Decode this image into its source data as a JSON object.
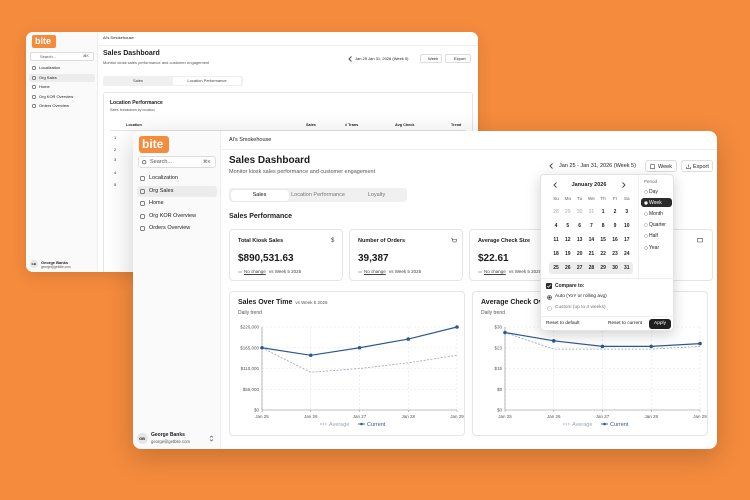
{
  "back_window": {
    "logo": "bite",
    "search": "Search...",
    "shortcut": "⌘K",
    "nav": [
      "Localization",
      "Org Sales",
      "Home",
      "Org KOR Overview",
      "Orders Overview"
    ],
    "active_nav_index": 1,
    "breadcrumb": "Al's Smokehouse",
    "title": "Sales Dashboard",
    "subtitle": "Monitor kiosk sales performance and customer engagement",
    "date_range": "Jan 25 Jan 31, 2026 (Week 5)",
    "period": "Week",
    "export": "Export",
    "tabs": [
      "Sales",
      "Location Performance"
    ],
    "active_tab_index": 1,
    "section_title": "Location Performance",
    "section_subtitle": "Sales breakdown by location",
    "table": {
      "headers": [
        "Location",
        "Sales",
        "# Trans",
        "Avg Check",
        "Trend"
      ],
      "row_numbers": [
        1,
        2,
        3,
        4,
        5
      ]
    },
    "user": {
      "initials": "GB",
      "name": "George Banks",
      "email": "george@getbite.com"
    }
  },
  "front_window": {
    "logo": "bite",
    "search": "Search...",
    "shortcut": "⌘K",
    "nav": [
      "Localization",
      "Org Sales",
      "Home",
      "Org KOR Overview",
      "Orders Overview"
    ],
    "active_nav_index": 1,
    "user": {
      "initials": "GB",
      "name": "George Banks",
      "email": "george@getbite.com"
    },
    "breadcrumb": "Al's Smokehouse",
    "title": "Sales Dashboard",
    "subtitle": "Monitor kiosk sales performance and customer engagement",
    "date_range": "Jan 25 - Jan 31, 2026 (Week 5)",
    "period": "Week",
    "export": "Export",
    "tabs": [
      "Sales",
      "Location Performance",
      "Loyalty"
    ],
    "active_tab_index": 0,
    "section_title": "Sales Performance",
    "cards": [
      {
        "title": "Total Kiosk Sales",
        "icon": "$",
        "value": "$890,531.63",
        "change": "No change",
        "comparison": "vs Week 5 2025"
      },
      {
        "title": "Number of Orders",
        "value": "39,387",
        "change": "No change",
        "comparison": "vs Week 5 2025"
      },
      {
        "title": "Average Check Size",
        "value": "$22.61",
        "change": "No change",
        "comparison": "vs Week 5 2025"
      }
    ],
    "charts": [
      {
        "type": "line",
        "title": "Sales Over Time",
        "badge": "vs Week 5 2025",
        "subtitle": "Daily trend",
        "categories": [
          "Jan 25",
          "Jan 26",
          "Jan 27",
          "Jan 28",
          "Jan 29"
        ],
        "ylim": [
          0,
          220000
        ],
        "yticks": [
          {
            "value": 0,
            "label": "$0"
          },
          {
            "value": 55000,
            "label": "$55,000"
          },
          {
            "value": 110000,
            "label": "$110,000"
          },
          {
            "value": 165000,
            "label": "$165,000"
          },
          {
            "value": 220000,
            "label": "$220,000"
          }
        ],
        "grid": true,
        "series": [
          {
            "name": "Average",
            "color": "#9aa3b3",
            "dashed": true,
            "values": [
              165000,
              100000,
              110000,
              125000,
              145000
            ]
          },
          {
            "name": "Current",
            "color": "#2d5a8e",
            "dashed": false,
            "values": [
              165000,
              145000,
              165000,
              188000,
              220000
            ]
          }
        ]
      },
      {
        "type": "line",
        "title": "Average Check Over Time",
        "subtitle": "Daily trend",
        "categories": [
          "Jan 25",
          "Jan 26",
          "Jan 27",
          "Jan 28",
          "Jan 29"
        ],
        "ylim": [
          0,
          30
        ],
        "yticks": [
          {
            "value": 0,
            "label": "$0"
          },
          {
            "value": 7.5,
            "label": "$8"
          },
          {
            "value": 15,
            "label": "$15"
          },
          {
            "value": 22.5,
            "label": "$23"
          },
          {
            "value": 30,
            "label": "$30"
          }
        ],
        "grid": true,
        "series": [
          {
            "name": "Average",
            "color": "#9aa3b3",
            "dashed": true,
            "values": [
              28,
              22,
              22,
              22,
              23
            ]
          },
          {
            "name": "Current",
            "color": "#2d5a8e",
            "dashed": false,
            "values": [
              28,
              25,
              23,
              23,
              24
            ]
          }
        ]
      }
    ],
    "date_picker": {
      "month": "January 2026",
      "weekdays": [
        "Su",
        "Mo",
        "Tu",
        "We",
        "Th",
        "Fr",
        "Sa"
      ],
      "days": [
        [
          28,
          29,
          30,
          31,
          1,
          2,
          3
        ],
        [
          4,
          5,
          6,
          7,
          8,
          9,
          10
        ],
        [
          11,
          12,
          13,
          14,
          15,
          16,
          17
        ],
        [
          18,
          19,
          20,
          21,
          22,
          23,
          24
        ],
        [
          25,
          26,
          27,
          28,
          29,
          30,
          31
        ]
      ],
      "selected_week_index": 4,
      "period_label": "Period",
      "periods": [
        "Day",
        "Week",
        "Month",
        "Quarter",
        "Half",
        "Year"
      ],
      "selected_period_index": 1,
      "compare_label": "Compare to:",
      "compare_options": [
        "Auto (YoY or rolling avg)",
        "Custom (up to 4 weeks)"
      ],
      "selected_compare_index": 0,
      "reset_default": "Reset to default",
      "reset_current": "Reset to current",
      "apply": "Apply"
    }
  }
}
